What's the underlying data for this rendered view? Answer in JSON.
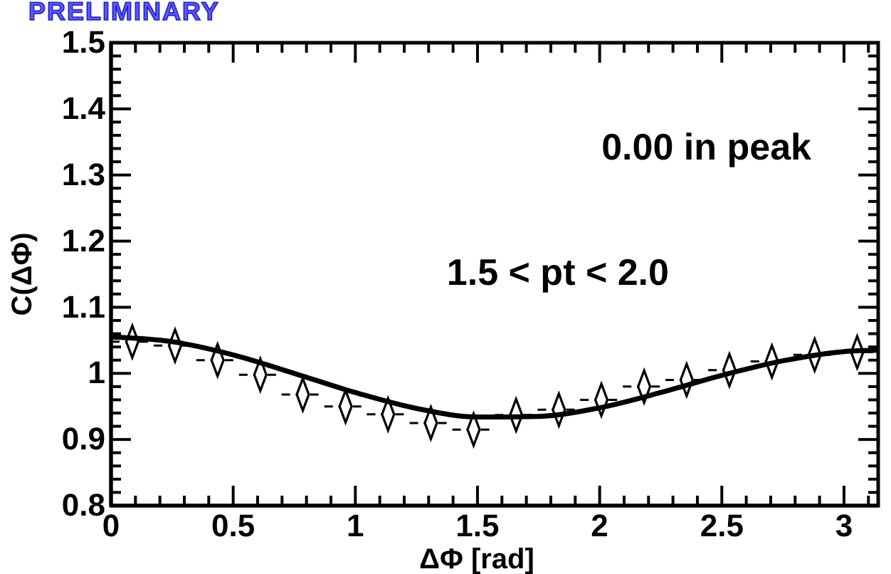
{
  "chart_data": {
    "type": "scatter",
    "xlabel": "ΔΦ [rad]",
    "ylabel": "C(ΔΦ)",
    "annotations": [
      "PRELIMINARY",
      "0.00 in peak",
      "1.5 < pt < 2.0"
    ],
    "xlim": [
      0,
      3.14
    ],
    "ylim": [
      0.8,
      1.5
    ],
    "xticks": [
      0,
      {
        "value": 0.1,
        "label": null
      },
      {
        "value": 0.2,
        "label": null
      },
      {
        "value": 0.3,
        "label": null
      },
      {
        "value": 0.4,
        "label": null
      },
      0.5,
      {
        "value": 0.6,
        "label": null
      },
      {
        "value": 0.7,
        "label": null
      },
      {
        "value": 0.8,
        "label": null
      },
      {
        "value": 0.9,
        "label": null
      },
      1,
      {
        "value": 1.1,
        "label": null
      },
      {
        "value": 1.2,
        "label": null
      },
      {
        "value": 1.3,
        "label": null
      },
      {
        "value": 1.4,
        "label": null
      },
      1.5,
      {
        "value": 1.6,
        "label": null
      },
      {
        "value": 1.7,
        "label": null
      },
      {
        "value": 1.8,
        "label": null
      },
      {
        "value": 1.9,
        "label": null
      },
      2,
      {
        "value": 2.1,
        "label": null
      },
      {
        "value": 2.2,
        "label": null
      },
      {
        "value": 2.3,
        "label": null
      },
      {
        "value": 2.4,
        "label": null
      },
      2.5,
      {
        "value": 2.6,
        "label": null
      },
      {
        "value": 2.7,
        "label": null
      },
      {
        "value": 2.8,
        "label": null
      },
      {
        "value": 2.9,
        "label": null
      },
      3,
      {
        "value": 3.1,
        "label": null
      }
    ],
    "yticks": [
      0.8,
      {
        "value": 0.82,
        "label": null
      },
      {
        "value": 0.84,
        "label": null
      },
      {
        "value": 0.86,
        "label": null
      },
      {
        "value": 0.88,
        "label": null
      },
      0.9,
      {
        "value": 0.92,
        "label": null
      },
      {
        "value": 0.94,
        "label": null
      },
      {
        "value": 0.96,
        "label": null
      },
      {
        "value": 0.98,
        "label": null
      },
      1,
      {
        "value": 1.02,
        "label": null
      },
      {
        "value": 1.04,
        "label": null
      },
      {
        "value": 1.06,
        "label": null
      },
      {
        "value": 1.08,
        "label": null
      },
      1.1,
      {
        "value": 1.12,
        "label": null
      },
      {
        "value": 1.14,
        "label": null
      },
      {
        "value": 1.16,
        "label": null
      },
      {
        "value": 1.18,
        "label": null
      },
      1.2,
      {
        "value": 1.22,
        "label": null
      },
      {
        "value": 1.24,
        "label": null
      },
      {
        "value": 1.26,
        "label": null
      },
      {
        "value": 1.28,
        "label": null
      },
      1.3,
      {
        "value": 1.32,
        "label": null
      },
      {
        "value": 1.34,
        "label": null
      },
      {
        "value": 1.36,
        "label": null
      },
      {
        "value": 1.38,
        "label": null
      },
      1.4,
      {
        "value": 1.42,
        "label": null
      },
      {
        "value": 1.44,
        "label": null
      },
      {
        "value": 1.46,
        "label": null
      },
      {
        "value": 1.48,
        "label": null
      },
      1.5
    ],
    "series": [
      {
        "marker": "diamond",
        "color": "#000000",
        "x": [
          0.087,
          0.262,
          0.436,
          0.611,
          0.785,
          0.96,
          1.134,
          1.309,
          1.484,
          1.658,
          1.833,
          2.007,
          2.182,
          2.356,
          2.531,
          2.705,
          2.88,
          3.054
        ],
        "values": [
          1.048,
          1.042,
          1.02,
          0.998,
          0.968,
          0.95,
          0.938,
          0.925,
          0.915,
          0.937,
          0.945,
          0.96,
          0.98,
          0.99,
          1.005,
          1.018,
          1.028,
          1.032
        ],
        "xerrors": [
          0.087,
          0.087,
          0.087,
          0.087,
          0.087,
          0.087,
          0.087,
          0.087,
          0.087,
          0.087,
          0.087,
          0.087,
          0.087,
          0.087,
          0.087,
          0.087,
          0.087,
          0.087
        ]
      },
      {
        "type": "line",
        "color": "#000000",
        "x": [
          0,
          0.25,
          0.5,
          0.75,
          1,
          1.25,
          1.5,
          1.75,
          2,
          2.25,
          2.5,
          2.75,
          3,
          3.14
        ],
        "values": [
          1.055,
          1.048,
          1.028,
          1.0,
          0.971,
          0.947,
          0.934,
          0.935,
          0.948,
          0.971,
          0.997,
          1.019,
          1.033,
          1.035
        ]
      }
    ]
  }
}
